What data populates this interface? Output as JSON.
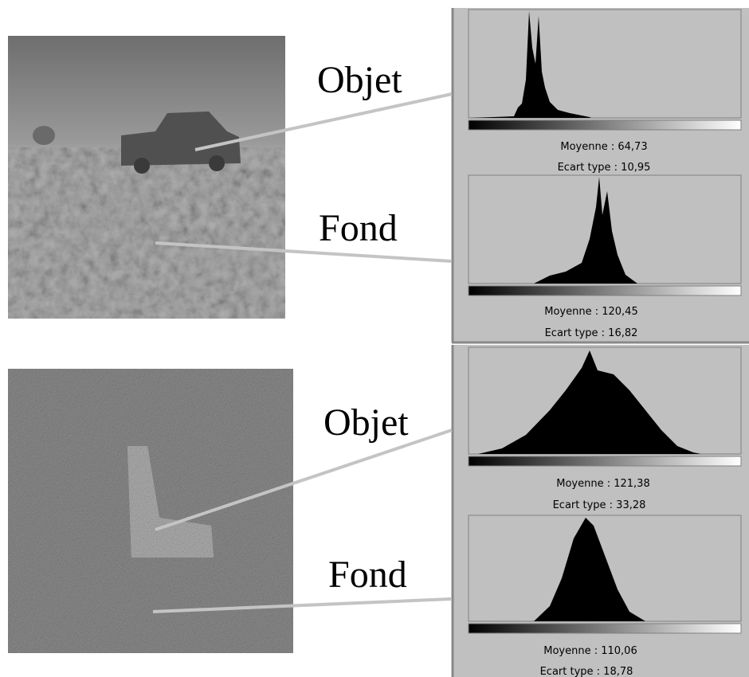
{
  "panels": [
    {
      "labels": {
        "object": "Objet",
        "background": "Fond"
      },
      "histograms": [
        {
          "mean": "Moyenne : 64,73",
          "std": "Ecart type : 10,95"
        },
        {
          "mean": "Moyenne : 120,45",
          "std": "Ecart type : 16,82"
        }
      ]
    },
    {
      "labels": {
        "object": "Objet",
        "background": "Fond"
      },
      "histograms": [
        {
          "mean": "Moyenne : 121,38",
          "std": "Ecart type : 33,28"
        },
        {
          "mean": "Moyenne : 110,06",
          "std": "Ecart type : 18,78"
        }
      ]
    }
  ]
}
